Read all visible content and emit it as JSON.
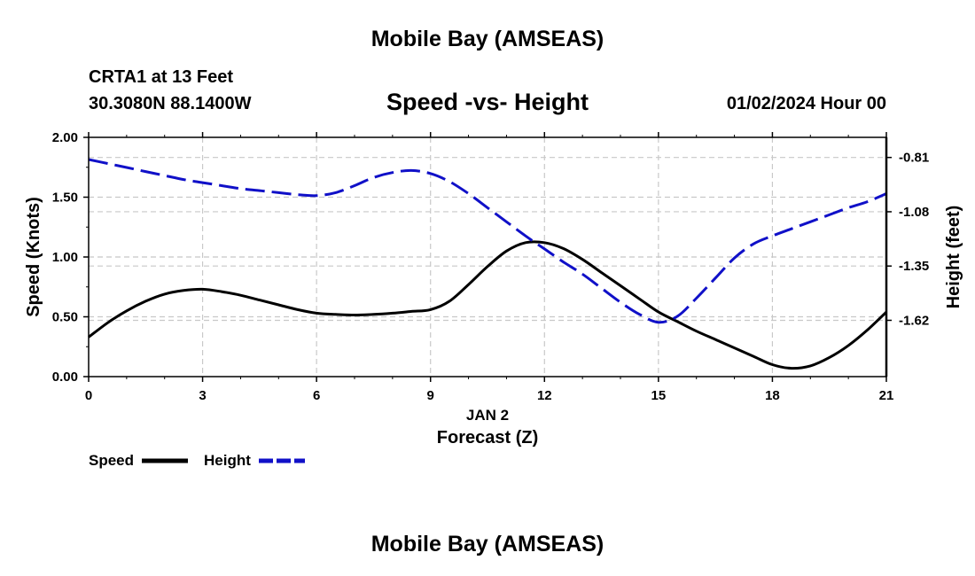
{
  "header": {
    "title": "Mobile Bay (AMSEAS)",
    "station": "CRTA1 at 13 Feet",
    "coords": "30.3080N  88.1400W",
    "date": "01/02/2024 Hour 00"
  },
  "footer": {
    "title": "Mobile Bay (AMSEAS)"
  },
  "chart_data": {
    "type": "line",
    "title": "Speed -vs- Height",
    "xlabel": "Forecast (Z)",
    "date_label": "JAN 2",
    "ylabel": "Speed (Knots)",
    "y2label": "Height (feet)",
    "xlim": [
      0,
      21
    ],
    "ylim": [
      0,
      2
    ],
    "y2lim": [
      -1.9,
      -0.71
    ],
    "xticks": [
      0,
      3,
      6,
      9,
      12,
      15,
      18,
      21
    ],
    "xtick_labels": [
      "0",
      "3",
      "6",
      "9",
      "12",
      "15",
      "18",
      "21"
    ],
    "yticks": [
      0,
      0.5,
      1.0,
      1.5,
      2.0
    ],
    "ytick_labels": [
      "0.00",
      "0.50",
      "1.00",
      "1.50",
      "2.00"
    ],
    "y2ticks": [
      -0.81,
      -1.08,
      -1.35,
      -1.62
    ],
    "y2tick_labels": [
      "-0.81",
      "-1.08",
      "-1.35",
      "-1.62"
    ],
    "grid": true,
    "series": [
      {
        "name": "Speed",
        "axis": "left",
        "color": "#000000",
        "style": "solid",
        "x": [
          0,
          0.5,
          1,
          1.5,
          2,
          2.5,
          3,
          3.5,
          4,
          4.5,
          5,
          5.5,
          6,
          6.5,
          7,
          7.5,
          8,
          8.5,
          9,
          9.5,
          10,
          10.5,
          11,
          11.5,
          12,
          12.5,
          13,
          13.5,
          14,
          14.5,
          15,
          15.5,
          16,
          16.5,
          17,
          17.5,
          18,
          18.5,
          19,
          19.5,
          20,
          20.5,
          21
        ],
        "values": [
          0.33,
          0.45,
          0.55,
          0.63,
          0.69,
          0.72,
          0.73,
          0.71,
          0.68,
          0.64,
          0.6,
          0.56,
          0.53,
          0.52,
          0.515,
          0.52,
          0.53,
          0.545,
          0.56,
          0.63,
          0.77,
          0.92,
          1.05,
          1.12,
          1.12,
          1.07,
          0.98,
          0.87,
          0.76,
          0.65,
          0.54,
          0.46,
          0.38,
          0.31,
          0.24,
          0.17,
          0.1,
          0.07,
          0.09,
          0.16,
          0.26,
          0.39,
          0.54
        ]
      },
      {
        "name": "Height",
        "axis": "right",
        "color": "#1010c8",
        "style": "dashed",
        "x": [
          0,
          0.5,
          1,
          1.5,
          2,
          2.5,
          3,
          3.5,
          4,
          4.5,
          5,
          5.5,
          6,
          6.5,
          7,
          7.5,
          8,
          8.5,
          9,
          9.5,
          10,
          10.5,
          11,
          11.5,
          12,
          12.5,
          13,
          13.5,
          14,
          14.5,
          15,
          15.5,
          16,
          16.5,
          17,
          17.5,
          18,
          18.5,
          19,
          19.5,
          20,
          20.5,
          21
        ],
        "values": [
          -0.82,
          -0.84,
          -0.86,
          -0.88,
          -0.9,
          -0.92,
          -0.935,
          -0.95,
          -0.965,
          -0.975,
          -0.985,
          -0.995,
          -1.0,
          -0.985,
          -0.95,
          -0.91,
          -0.885,
          -0.875,
          -0.89,
          -0.93,
          -0.99,
          -1.06,
          -1.13,
          -1.2,
          -1.265,
          -1.33,
          -1.39,
          -1.46,
          -1.53,
          -1.59,
          -1.63,
          -1.6,
          -1.51,
          -1.41,
          -1.31,
          -1.24,
          -1.2,
          -1.165,
          -1.13,
          -1.095,
          -1.06,
          -1.03,
          -0.99
        ]
      }
    ],
    "legend": {
      "position": "bottom-left",
      "entries": [
        {
          "label": "Speed",
          "color": "#000000",
          "style": "solid"
        },
        {
          "label": "Height",
          "color": "#1010c8",
          "style": "dashed"
        }
      ]
    }
  }
}
